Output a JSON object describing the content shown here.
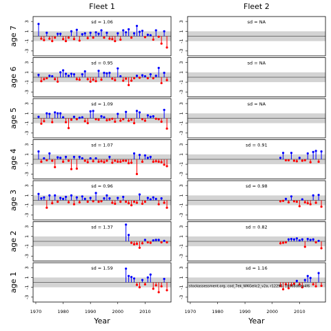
{
  "chart_data": {
    "type": "lollipop",
    "xlabel": "Year",
    "xlim": [
      1969,
      2019.5
    ],
    "xticks": [
      1970,
      1980,
      1990,
      2000,
      2010
    ],
    "ylim": [
      -4,
      4
    ],
    "yticks": [
      -3,
      -1,
      1,
      3
    ],
    "band": [
      -1,
      1
    ],
    "positive_color": "#0000ff",
    "negative_color": "#ff0000",
    "band_color": "#d3d3d3",
    "ages": [
      "age 7",
      "age 6",
      "age 5",
      "age 4",
      "age 3",
      "age 2",
      "age 1"
    ],
    "footnote": "stockassessment.org, cod_7ek_WKGelic2_v2a, r12295, 18008d6ea4f6",
    "fleets": [
      {
        "name": "Fleet 1",
        "panels": [
          {
            "sd_label": "sd = 1.06",
            "x": [
              1971,
              1972,
              1973,
              1974,
              1975,
              1976,
              1977,
              1978,
              1979,
              1980,
              1981,
              1982,
              1983,
              1984,
              1985,
              1986,
              1987,
              1988,
              1989,
              1990,
              1991,
              1992,
              1993,
              1994,
              1995,
              1996,
              1997,
              1998,
              1999,
              2000,
              2001,
              2002,
              2003,
              2004,
              2005,
              2006,
              2007,
              2008,
              2009,
              2010,
              2011,
              2012,
              2013,
              2014,
              2015,
              2016,
              2017,
              2018
            ],
            "values": [
              2.5,
              -0.5,
              -0.8,
              0.7,
              -0.5,
              -1.0,
              -0.3,
              0.5,
              0.5,
              -0.6,
              -1.0,
              -0.3,
              1.0,
              -0.6,
              1.3,
              -0.9,
              0.4,
              0.6,
              -0.4,
              0.7,
              -0.3,
              0.8,
              0.5,
              1.2,
              -0.3,
              0.7,
              -0.5,
              -0.6,
              -1.0,
              0.6,
              -0.7,
              1.2,
              0.8,
              1.4,
              -0.3,
              0.6,
              2.1,
              0.9,
              1.1,
              -0.2,
              0.3,
              0.2,
              -0.7,
              1.2,
              -0.1,
              -1.5,
              1.0,
              -2.3
            ]
          },
          {
            "sd_label": "sd = 0.95",
            "x": [
              1971,
              1972,
              1973,
              1974,
              1975,
              1976,
              1977,
              1978,
              1979,
              1980,
              1981,
              1982,
              1983,
              1984,
              1985,
              1986,
              1987,
              1988,
              1989,
              1990,
              1991,
              1992,
              1993,
              1994,
              1995,
              1996,
              1997,
              1998,
              1999,
              2000,
              2001,
              2002,
              2003,
              2004,
              2005,
              2006,
              2007,
              2008,
              2009,
              2010,
              2011,
              2012,
              2013,
              2014,
              2015,
              2016,
              2017,
              2018
            ],
            "values": [
              0.5,
              -0.8,
              -0.4,
              -0.2,
              0.3,
              0.2,
              -0.4,
              -0.9,
              1.0,
              1.4,
              0.7,
              0.3,
              0.7,
              0.6,
              -0.4,
              -0.5,
              0.6,
              1.2,
              -0.4,
              -0.9,
              -0.5,
              -0.8,
              1.3,
              -0.5,
              0.9,
              0.8,
              0.9,
              -0.3,
              -0.6,
              1.8,
              0.2,
              -0.7,
              -0.3,
              -1.6,
              -0.7,
              -0.2,
              0.3,
              -0.1,
              0.4,
              0.2,
              -0.2,
              0.6,
              -0.2,
              0.3,
              1.9,
              -1.2,
              0.9,
              -0.6
            ]
          },
          {
            "sd_label": "sd = 1.09",
            "x": [
              1971,
              1972,
              1973,
              1974,
              1975,
              1976,
              1977,
              1978,
              1979,
              1980,
              1981,
              1982,
              1983,
              1984,
              1985,
              1986,
              1987,
              1988,
              1989,
              1990,
              1991,
              1992,
              1993,
              1994,
              1995,
              1996,
              1997,
              1998,
              1999,
              2000,
              2001,
              2002,
              2003,
              2004,
              2005,
              2006,
              2007,
              2008,
              2009,
              2010,
              2011,
              2012,
              2013,
              2014,
              2015,
              2016,
              2017,
              2018
            ],
            "values": [
              0.3,
              -1.1,
              -0.6,
              1.0,
              0.9,
              -0.8,
              1.2,
              1.0,
              1.0,
              0.2,
              -0.8,
              -2.0,
              -0.3,
              0.3,
              -0.2,
              0.1,
              0.2,
              -0.6,
              -1.0,
              1.4,
              1.5,
              -0.2,
              -0.3,
              0.4,
              0.2,
              -0.4,
              -0.3,
              -0.1,
              -0.7,
              0.9,
              -0.5,
              -0.2,
              1.3,
              -0.5,
              -0.3,
              -1.0,
              1.5,
              1.2,
              -0.2,
              -0.5,
              0.6,
              0.3,
              0.4,
              -0.1,
              -0.2,
              -0.7,
              1.7,
              -2.1
            ]
          },
          {
            "sd_label": "sd = 1.07",
            "x": [
              1971,
              1972,
              1973,
              1974,
              1975,
              1976,
              1977,
              1978,
              1979,
              1980,
              1981,
              1982,
              1983,
              1984,
              1985,
              1986,
              1987,
              1988,
              1989,
              1990,
              1991,
              1992,
              1993,
              1994,
              1995,
              1996,
              1997,
              1998,
              1999,
              2000,
              2001,
              2002,
              2003,
              2004,
              2005,
              2006,
              2007,
              2008,
              2009,
              2010,
              2011,
              2012,
              2013,
              2014,
              2015,
              2016,
              2017,
              2018
            ],
            "values": [
              1.6,
              -0.5,
              0.2,
              -0.2,
              1.2,
              -0.3,
              -1.6,
              0.4,
              0.3,
              -0.5,
              0.5,
              -0.3,
              -2.0,
              0.5,
              -1.9,
              0.5,
              0.2,
              -0.3,
              -0.6,
              0.2,
              -0.4,
              0.2,
              -0.5,
              -0.4,
              -0.6,
              -0.3,
              0.5,
              -0.7,
              -0.3,
              -0.5,
              -0.5,
              -0.3,
              -0.3,
              -0.8,
              -0.7,
              1.2,
              -3.0,
              0.9,
              -0.5,
              0.8,
              0.3,
              0.5,
              -0.5,
              -0.4,
              -0.5,
              -0.6,
              -1.1,
              -1.4
            ]
          },
          {
            "sd_label": "sd = 0.96",
            "x": [
              1971,
              1972,
              1973,
              1974,
              1975,
              1976,
              1977,
              1978,
              1979,
              1980,
              1981,
              1982,
              1983,
              1984,
              1985,
              1986,
              1987,
              1988,
              1989,
              1990,
              1991,
              1992,
              1993,
              1994,
              1995,
              1996,
              1997,
              1998,
              1999,
              2000,
              2001,
              2002,
              2003,
              2004,
              2005,
              2006,
              2007,
              2008,
              2009,
              2010,
              2011,
              2012,
              2013,
              2014,
              2015,
              2016,
              2017,
              2018
            ],
            "values": [
              1.3,
              0.4,
              0.6,
              -1.5,
              1.0,
              -0.6,
              1.0,
              -0.3,
              0.5,
              0.3,
              0.7,
              -0.4,
              1.0,
              -0.8,
              0.6,
              -0.4,
              0.8,
              0.3,
              -0.3,
              0.5,
              -0.2,
              1.5,
              -0.3,
              -0.2,
              0.4,
              1.0,
              0.4,
              -0.5,
              -0.7,
              0.5,
              -0.3,
              0.7,
              -0.3,
              -0.6,
              -1.0,
              -0.3,
              -0.5,
              1.2,
              -0.7,
              -0.3,
              0.5,
              0.2,
              0.6,
              0.3,
              -0.8,
              0.4,
              -0.5,
              -1.5
            ]
          },
          {
            "sd_label": "sd = 1.37",
            "x": [
              2003,
              2004,
              2005,
              2006,
              2007,
              2008,
              2009,
              2010,
              2011,
              2012,
              2013,
              2014,
              2015,
              2016,
              2017,
              2018
            ],
            "values": [
              3.4,
              1.3,
              -0.3,
              -0.6,
              -0.5,
              -1.3,
              -0.4,
              0.3,
              -0.2,
              -0.3,
              0.2,
              0.3,
              0.3,
              -0.2,
              0.1,
              -0.2
            ]
          },
          {
            "sd_label": "sd = 1.59",
            "x": [
              2003,
              2004,
              2005,
              2006,
              2007,
              2008,
              2009,
              2010,
              2011,
              2012,
              2013,
              2014,
              2015,
              2016,
              2017,
              2018
            ],
            "values": [
              2.8,
              1.3,
              1.1,
              0.8,
              -0.5,
              -1.0,
              0.5,
              -0.4,
              1.0,
              1.6,
              -1.3,
              -0.6,
              -2.0,
              -0.8,
              0.7,
              -1.6
            ]
          }
        ]
      },
      {
        "name": "Fleet 2",
        "panels": [
          {
            "sd_label": "sd = NA",
            "x": [],
            "values": []
          },
          {
            "sd_label": "sd = NA",
            "x": [],
            "values": []
          },
          {
            "sd_label": "sd = NA",
            "x": [],
            "values": []
          },
          {
            "sd_label": "sd = 0.91",
            "x": [
              2003,
              2004,
              2005,
              2006,
              2007,
              2008,
              2009,
              2010,
              2011,
              2012,
              2013,
              2014,
              2015,
              2016,
              2017,
              2018
            ],
            "values": [
              0.3,
              1.3,
              -0.2,
              -0.2,
              1.3,
              -0.3,
              -0.4,
              0.3,
              -0.3,
              -0.2,
              1.2,
              -0.6,
              1.5,
              1.7,
              -0.5,
              1.6
            ]
          },
          {
            "sd_label": "sd = 0.98",
            "x": [
              2003,
              2004,
              2005,
              2006,
              2007,
              2008,
              2009,
              2010,
              2011,
              2012,
              2013,
              2014,
              2015,
              2016,
              2017,
              2018
            ],
            "values": [
              -0.2,
              -0.1,
              0.3,
              -0.4,
              0.8,
              -0.2,
              -0.3,
              -1.2,
              0.2,
              -0.4,
              -0.6,
              -0.8,
              1.0,
              -0.5,
              1.1,
              -1.3
            ]
          },
          {
            "sd_label": "sd = 0.82",
            "x": [
              2003,
              2004,
              2005,
              2006,
              2007,
              2008,
              2009,
              2010,
              2011,
              2012,
              2013,
              2014,
              2015,
              2016,
              2017,
              2018
            ],
            "values": [
              -0.4,
              -0.3,
              -0.2,
              0.4,
              0.5,
              0.4,
              0.6,
              0.2,
              0.4,
              -1.1,
              0.5,
              0.3,
              0.4,
              -0.2,
              0.1,
              -1.4
            ]
          },
          {
            "sd_label": "sd = 1.16",
            "x": [
              2003,
              2004,
              2005,
              2006,
              2007,
              2008,
              2009,
              2010,
              2011,
              2012,
              2013,
              2014,
              2015,
              2016,
              2017,
              2018
            ],
            "values": [
              -0.7,
              -1.4,
              -0.4,
              -1.2,
              -0.6,
              -0.3,
              0.3,
              -0.4,
              -1.0,
              0.5,
              1.3,
              0.9,
              -0.4,
              -0.8,
              1.9,
              -0.7
            ]
          }
        ]
      }
    ]
  }
}
